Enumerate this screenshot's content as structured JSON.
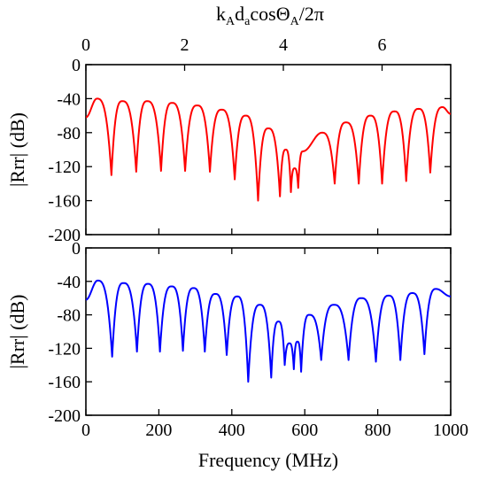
{
  "colors": {
    "top_curve": "#ff0000",
    "bottom_curve": "#0000ff",
    "axes": "#000000"
  },
  "top_axis": {
    "label_parts": [
      {
        "t": "k"
      },
      {
        "t": "A",
        "sub": true
      },
      {
        "t": "d"
      },
      {
        "t": "a",
        "sub": true
      },
      {
        "t": "cosΘ"
      },
      {
        "t": "A",
        "sub": true
      },
      {
        "t": "/2π"
      }
    ],
    "range": [
      0,
      7.39
    ],
    "ticks": [
      0,
      2,
      4,
      6
    ],
    "tick_labels": [
      "0",
      "2",
      "4",
      "6"
    ]
  },
  "chart_data": [
    {
      "type": "line",
      "xlabel": "",
      "ylabel": "|Rrr| (dB)",
      "xlim": [
        0,
        1000
      ],
      "ylim": [
        -200,
        0
      ],
      "x_ticks": [
        0,
        200,
        400,
        600,
        800,
        1000
      ],
      "y_ticks": [
        0,
        -40,
        -80,
        -120,
        -160,
        -200
      ],
      "y_tick_labels": [
        "0",
        "-40",
        "-80",
        "-120",
        "-160",
        "-200"
      ],
      "series": [
        {
          "color": "#ff0000",
          "lobe_peaks": [
            {
              "x": 0,
              "y": -62
            },
            {
              "x": 30,
              "y": -40
            },
            {
              "x": 100,
              "y": -43
            },
            {
              "x": 168,
              "y": -43
            },
            {
              "x": 236,
              "y": -45
            },
            {
              "x": 305,
              "y": -48
            },
            {
              "x": 372,
              "y": -53
            },
            {
              "x": 438,
              "y": -60
            },
            {
              "x": 500,
              "y": -75
            },
            {
              "x": 548,
              "y": -100
            },
            {
              "x": 572,
              "y": -122
            },
            {
              "x": 595,
              "y": -102
            },
            {
              "x": 647,
              "y": -80
            },
            {
              "x": 713,
              "y": -68
            },
            {
              "x": 780,
              "y": -60
            },
            {
              "x": 846,
              "y": -55
            },
            {
              "x": 912,
              "y": -52
            },
            {
              "x": 978,
              "y": -50
            },
            {
              "x": 1000,
              "y": -58
            }
          ],
          "nulls": [
            {
              "x": 70,
              "y": -130
            },
            {
              "x": 138,
              "y": -126
            },
            {
              "x": 206,
              "y": -125
            },
            {
              "x": 272,
              "y": -125
            },
            {
              "x": 340,
              "y": -126
            },
            {
              "x": 408,
              "y": -135
            },
            {
              "x": 472,
              "y": -160
            },
            {
              "x": 532,
              "y": -155
            },
            {
              "x": 562,
              "y": -150
            },
            {
              "x": 582,
              "y": -145
            },
            {
              "x": 682,
              "y": -140
            },
            {
              "x": 748,
              "y": -140
            },
            {
              "x": 812,
              "y": -140
            },
            {
              "x": 878,
              "y": -137
            },
            {
              "x": 944,
              "y": -127
            }
          ]
        }
      ]
    },
    {
      "type": "line",
      "xlabel": "Frequency (MHz)",
      "ylabel": "|Rrr| (dB)",
      "xlim": [
        0,
        1000
      ],
      "ylim": [
        -200,
        0
      ],
      "x_ticks": [
        0,
        200,
        400,
        600,
        800,
        1000
      ],
      "x_tick_labels": [
        "0",
        "200",
        "400",
        "600",
        "800",
        "1000"
      ],
      "y_ticks": [
        0,
        -40,
        -80,
        -120,
        -160,
        -200
      ],
      "y_tick_labels": [
        "0",
        "-40",
        "-80",
        "-120",
        "-160",
        "-200"
      ],
      "series": [
        {
          "color": "#0000ff",
          "lobe_peaks": [
            {
              "x": 0,
              "y": -62
            },
            {
              "x": 32,
              "y": -39
            },
            {
              "x": 103,
              "y": -42
            },
            {
              "x": 170,
              "y": -43
            },
            {
              "x": 235,
              "y": -46
            },
            {
              "x": 295,
              "y": -48
            },
            {
              "x": 355,
              "y": -55
            },
            {
              "x": 415,
              "y": -58
            },
            {
              "x": 477,
              "y": -68
            },
            {
              "x": 528,
              "y": -88
            },
            {
              "x": 558,
              "y": -114
            },
            {
              "x": 580,
              "y": -112
            },
            {
              "x": 612,
              "y": -80
            },
            {
              "x": 680,
              "y": -68
            },
            {
              "x": 755,
              "y": -60
            },
            {
              "x": 830,
              "y": -57
            },
            {
              "x": 895,
              "y": -54
            },
            {
              "x": 960,
              "y": -49
            },
            {
              "x": 1000,
              "y": -58
            }
          ],
          "nulls": [
            {
              "x": 72,
              "y": -130
            },
            {
              "x": 140,
              "y": -124
            },
            {
              "x": 203,
              "y": -124
            },
            {
              "x": 266,
              "y": -123
            },
            {
              "x": 326,
              "y": -124
            },
            {
              "x": 386,
              "y": -128
            },
            {
              "x": 445,
              "y": -160
            },
            {
              "x": 508,
              "y": -155
            },
            {
              "x": 545,
              "y": -140
            },
            {
              "x": 570,
              "y": -145
            },
            {
              "x": 590,
              "y": -148
            },
            {
              "x": 645,
              "y": -134
            },
            {
              "x": 720,
              "y": -134
            },
            {
              "x": 795,
              "y": -136
            },
            {
              "x": 862,
              "y": -134
            },
            {
              "x": 928,
              "y": -127
            }
          ]
        }
      ]
    }
  ]
}
